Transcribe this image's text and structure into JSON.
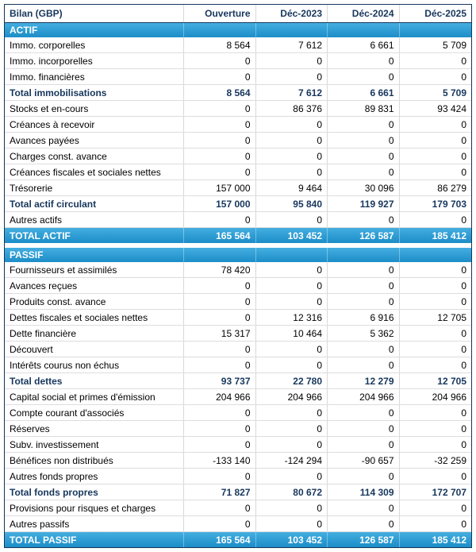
{
  "table": {
    "title": "Bilan (GBP)",
    "columns": [
      "Ouverture",
      "Déc-2023",
      "Déc-2024",
      "Déc-2025"
    ],
    "sections": [
      {
        "name": "ACTIF",
        "rows": [
          {
            "label": "Immo. corporelles",
            "style": "normal",
            "values": [
              "8 564",
              "7 612",
              "6 661",
              "5 709"
            ]
          },
          {
            "label": "Immo. incorporelles",
            "style": "normal",
            "values": [
              "0",
              "0",
              "0",
              "0"
            ]
          },
          {
            "label": "Immo. financières",
            "style": "normal",
            "values": [
              "0",
              "0",
              "0",
              "0"
            ]
          },
          {
            "label": "Total immobilisations",
            "style": "subtotal",
            "values": [
              "8 564",
              "7 612",
              "6 661",
              "5 709"
            ]
          },
          {
            "label": "Stocks et en-cours",
            "style": "normal",
            "values": [
              "0",
              "86 376",
              "89 831",
              "93 424"
            ]
          },
          {
            "label": "Créances à recevoir",
            "style": "normal",
            "values": [
              "0",
              "0",
              "0",
              "0"
            ]
          },
          {
            "label": "Avances payées",
            "style": "normal",
            "values": [
              "0",
              "0",
              "0",
              "0"
            ]
          },
          {
            "label": "Charges const. avance",
            "style": "normal",
            "values": [
              "0",
              "0",
              "0",
              "0"
            ]
          },
          {
            "label": "Créances fiscales et sociales nettes",
            "style": "normal",
            "values": [
              "0",
              "0",
              "0",
              "0"
            ]
          },
          {
            "label": "Trésorerie",
            "style": "normal",
            "values": [
              "157 000",
              "9 464",
              "30 096",
              "86 279"
            ]
          },
          {
            "label": "Total actif circulant",
            "style": "subtotal",
            "values": [
              "157 000",
              "95 840",
              "119 927",
              "179 703"
            ]
          },
          {
            "label": "Autres actifs",
            "style": "normal",
            "values": [
              "0",
              "0",
              "0",
              "0"
            ]
          }
        ],
        "total": {
          "label": "TOTAL ACTIF",
          "values": [
            "165 564",
            "103 452",
            "126 587",
            "185 412"
          ]
        }
      },
      {
        "name": "PASSIF",
        "rows": [
          {
            "label": "Fournisseurs et assimilés",
            "style": "normal",
            "values": [
              "78 420",
              "0",
              "0",
              "0"
            ]
          },
          {
            "label": "Avances reçues",
            "style": "normal",
            "values": [
              "0",
              "0",
              "0",
              "0"
            ]
          },
          {
            "label": "Produits const. avance",
            "style": "normal",
            "values": [
              "0",
              "0",
              "0",
              "0"
            ]
          },
          {
            "label": "Dettes fiscales et sociales nettes",
            "style": "normal",
            "values": [
              "0",
              "12 316",
              "6 916",
              "12 705"
            ]
          },
          {
            "label": "Dette financière",
            "style": "normal",
            "values": [
              "15 317",
              "10 464",
              "5 362",
              "0"
            ]
          },
          {
            "label": "Découvert",
            "style": "normal",
            "values": [
              "0",
              "0",
              "0",
              "0"
            ]
          },
          {
            "label": "Intérêts courus non échus",
            "style": "normal",
            "values": [
              "0",
              "0",
              "0",
              "0"
            ]
          },
          {
            "label": "Total dettes",
            "style": "subtotal",
            "values": [
              "93 737",
              "22 780",
              "12 279",
              "12 705"
            ]
          },
          {
            "label": "Capital social et primes d'émission",
            "style": "normal",
            "values": [
              "204 966",
              "204 966",
              "204 966",
              "204 966"
            ]
          },
          {
            "label": "Compte courant d'associés",
            "style": "normal",
            "values": [
              "0",
              "0",
              "0",
              "0"
            ]
          },
          {
            "label": "Réserves",
            "style": "normal",
            "values": [
              "0",
              "0",
              "0",
              "0"
            ]
          },
          {
            "label": "Subv. investissement",
            "style": "normal",
            "values": [
              "0",
              "0",
              "0",
              "0"
            ]
          },
          {
            "label": "Bénéfices non distribués",
            "style": "normal",
            "values": [
              "-133 140",
              "-124 294",
              "-90 657",
              "-32 259"
            ]
          },
          {
            "label": "Autres fonds propres",
            "style": "normal",
            "values": [
              "0",
              "0",
              "0",
              "0"
            ]
          },
          {
            "label": "Total fonds propres",
            "style": "subtotal",
            "values": [
              "71 827",
              "80 672",
              "114 309",
              "172 707"
            ]
          },
          {
            "label": "Provisions pour risques et charges",
            "style": "normal",
            "values": [
              "0",
              "0",
              "0",
              "0"
            ]
          },
          {
            "label": "Autres passifs",
            "style": "normal",
            "values": [
              "0",
              "0",
              "0",
              "0"
            ]
          }
        ],
        "total": {
          "label": "TOTAL PASSIF",
          "values": [
            "165 564",
            "103 452",
            "126 587",
            "185 412"
          ]
        }
      }
    ]
  }
}
